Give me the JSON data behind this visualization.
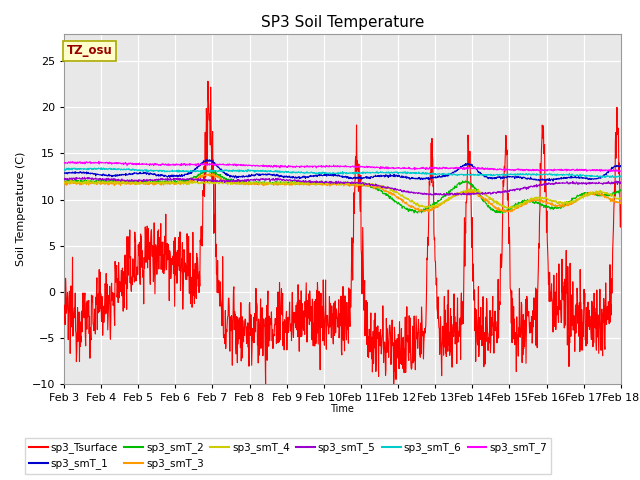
{
  "title": "SP3 Soil Temperature",
  "xlabel": "Time",
  "ylabel": "Soil Temperature (C)",
  "ylim": [
    -10,
    28
  ],
  "bg_color": "#ffffff",
  "plot_bg_color": "#e8e8e8",
  "tz_label": "TZ_osu",
  "tz_bg": "#ffffcc",
  "tz_border": "#aaaa00",
  "tz_text_color": "#990000",
  "legend_labels": [
    "sp3_Tsurface",
    "sp3_smT_1",
    "sp3_smT_2",
    "sp3_smT_3",
    "sp3_smT_4",
    "sp3_smT_5",
    "sp3_smT_6",
    "sp3_smT_7"
  ],
  "line_colors": [
    "#ff0000",
    "#0000cc",
    "#00bb00",
    "#ff9900",
    "#cccc00",
    "#9900cc",
    "#00cccc",
    "#ff00ff"
  ],
  "x_tick_labels": [
    "Feb 3",
    "Feb 4",
    "Feb 5",
    "Feb 6",
    "Feb 7",
    "Feb 8",
    "Feb 9",
    "Feb 10",
    "Feb 11",
    "Feb 12",
    "Feb 13",
    "Feb 14",
    "Feb 15",
    "Feb 16",
    "Feb 17",
    "Feb 18"
  ],
  "n_points": 1440
}
